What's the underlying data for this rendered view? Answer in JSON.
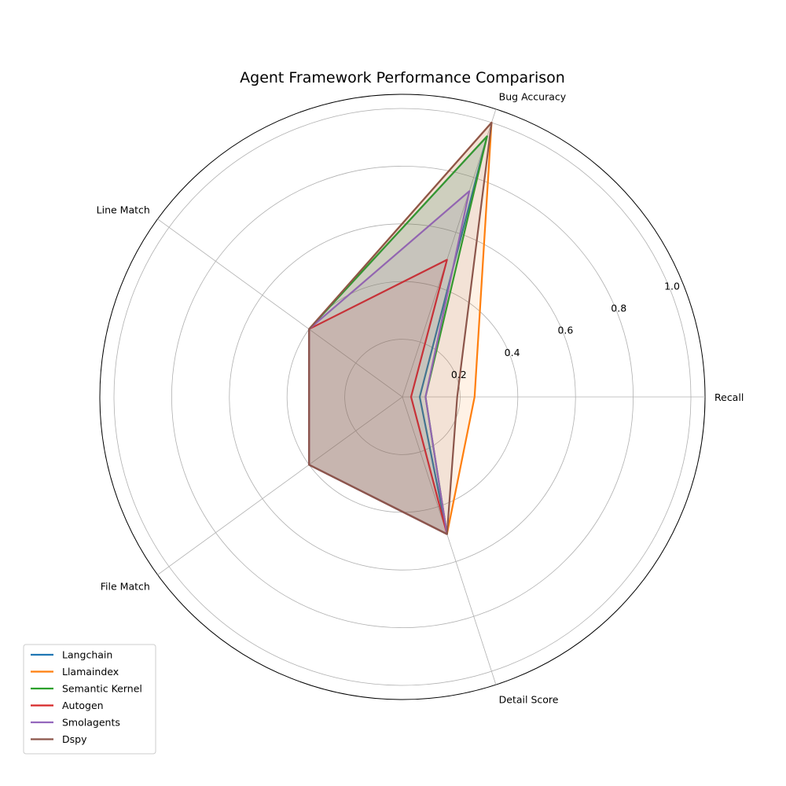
{
  "chart_data": {
    "type": "radar",
    "title": "Agent Framework Performance Comparison",
    "axes": [
      "Recall",
      "Bug Accuracy",
      "Line Match",
      "File Match",
      "Detail Score"
    ],
    "rlim": [
      0,
      1.0
    ],
    "r_ticks": [
      "0.2",
      "0.4",
      "0.6",
      "0.8",
      "1.0"
    ],
    "r_tick_values": [
      0.2,
      0.4,
      0.6,
      0.8,
      1.0
    ],
    "grid": true,
    "legend_position": "lower-left",
    "series": [
      {
        "name": "Langchain",
        "color": "#1f77b4",
        "values": [
          0.06,
          0.95,
          0.4,
          0.4,
          0.5
        ]
      },
      {
        "name": "Llamaindex",
        "color": "#ff7f0e",
        "values": [
          0.25,
          1.0,
          0.4,
          0.4,
          0.5
        ]
      },
      {
        "name": "Semantic Kernel",
        "color": "#2ca02c",
        "values": [
          0.08,
          0.95,
          0.4,
          0.4,
          0.5
        ]
      },
      {
        "name": "Autogen",
        "color": "#d62728",
        "values": [
          0.03,
          0.5,
          0.4,
          0.4,
          0.5
        ]
      },
      {
        "name": "Smolagents",
        "color": "#9467bd",
        "values": [
          0.08,
          0.75,
          0.4,
          0.4,
          0.5
        ]
      },
      {
        "name": "Dspy",
        "color": "#8c564b",
        "values": [
          0.19,
          1.0,
          0.4,
          0.4,
          0.5
        ]
      }
    ]
  }
}
